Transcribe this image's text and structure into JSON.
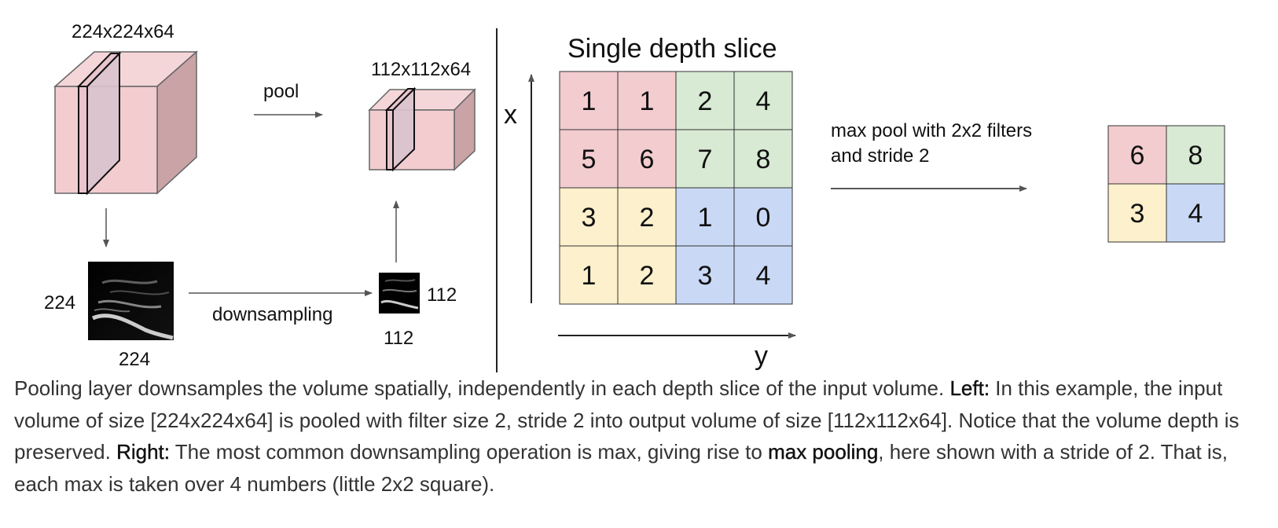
{
  "figure": {
    "left": {
      "input_label": "224x224x64",
      "output_label": "112x112x64",
      "pool_label": "pool",
      "downsampling_label": "downsampling",
      "input_slice_h": "224",
      "input_slice_w": "224",
      "output_slice_h": "112",
      "output_slice_w": "112"
    },
    "right": {
      "title": "Single depth slice",
      "x_axis": "x",
      "y_axis": "y",
      "op_line1": "max pool with 2x2 filters",
      "op_line2": "and stride 2",
      "input_grid": [
        [
          1,
          1,
          2,
          4
        ],
        [
          5,
          6,
          7,
          8
        ],
        [
          3,
          2,
          1,
          0
        ],
        [
          1,
          2,
          3,
          4
        ]
      ],
      "output_grid": [
        [
          6,
          8
        ],
        [
          3,
          4
        ]
      ]
    },
    "colors": {
      "q1": "#f2cccf",
      "q2": "#d8ead3",
      "q3": "#fdf0cc",
      "q4": "#c9d9f5",
      "cube_front": "#f2cccf",
      "cube_top": "#f5d6d8",
      "cube_side": "#c9a3a6",
      "slice": "#d9c3ce"
    }
  },
  "caption": {
    "p1": "Pooling layer downsamples the volume spatially, independently in each depth slice of the input volume. ",
    "left_bold": "Left:",
    "p2": " In this example, the input volume of size [224x224x64] is pooled with filter size 2, stride 2 into output volume of size [112x112x64]. Notice that the volume depth is preserved. ",
    "right_bold": "Right:",
    "p3": " The most common downsampling operation is max, giving rise to ",
    "maxpool_bold": "max pooling",
    "p4": ", here shown with a stride of 2. That is, each max is taken over 4 numbers (little 2x2 square)."
  }
}
